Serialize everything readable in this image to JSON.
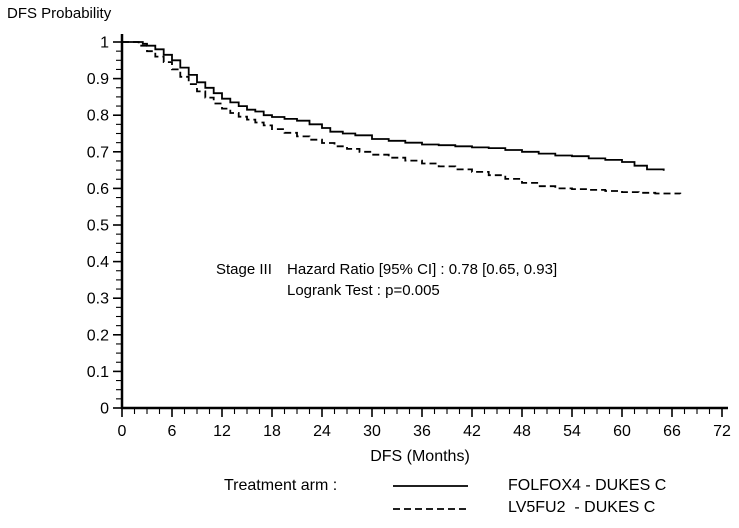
{
  "figure": {
    "ylabel_title": "DFS Probability",
    "xlabel": "DFS (Months)",
    "annotation": {
      "stage": "Stage III",
      "hazard_ratio": "Hazard Ratio [95% CI] : 0.78 [0.65, 0.93]",
      "logrank": "Logrank Test : p=0.005"
    },
    "legend": {
      "title": "Treatment arm :",
      "entries": [
        {
          "label": "FOLFOX4 - DUKES C",
          "style": "solid"
        },
        {
          "label": "LV5FU2  - DUKES C",
          "style": "dashed"
        }
      ]
    }
  },
  "chart_data": {
    "type": "line",
    "subtype": "kaplan-meier-step",
    "title": "",
    "xlabel": "DFS (Months)",
    "ylabel": "DFS Probability",
    "xlim": [
      0,
      72
    ],
    "ylim": [
      0,
      1
    ],
    "xticks_major": [
      0,
      6,
      12,
      18,
      24,
      30,
      36,
      42,
      48,
      54,
      60,
      66,
      72
    ],
    "yticks_major": [
      0,
      0.1,
      0.2,
      0.3,
      0.4,
      0.5,
      0.6,
      0.7,
      0.8,
      0.9,
      1
    ],
    "xtick_minor_step": 1.5,
    "xtick_major_step": 6,
    "ytick_minor_step": 0.025,
    "ytick_major_step": 0.1,
    "grid": false,
    "legend_position": "bottom",
    "line_color": "#000000",
    "annotations": [
      "Stage III",
      "Hazard Ratio [95% CI] : 0.78 [0.65, 0.93]",
      "Logrank Test : p=0.005"
    ],
    "series": [
      {
        "name": "FOLFOX4 - DUKES C",
        "line": "solid",
        "color": "#000000",
        "x": [
          0,
          2.5,
          3,
          4,
          5,
          6,
          7,
          8,
          9,
          10,
          11,
          12,
          13,
          14,
          15,
          16,
          17,
          18,
          19.5,
          21,
          22.5,
          24,
          25,
          26.5,
          28,
          30,
          32,
          34,
          36,
          38,
          40,
          42,
          44,
          46,
          48,
          50,
          52,
          54,
          56,
          58,
          60,
          61.5,
          63,
          65
        ],
        "y": [
          1.0,
          0.995,
          0.99,
          0.98,
          0.965,
          0.95,
          0.93,
          0.91,
          0.89,
          0.875,
          0.86,
          0.845,
          0.835,
          0.825,
          0.815,
          0.81,
          0.8,
          0.795,
          0.79,
          0.785,
          0.775,
          0.765,
          0.755,
          0.75,
          0.745,
          0.735,
          0.73,
          0.725,
          0.72,
          0.718,
          0.715,
          0.712,
          0.71,
          0.705,
          0.7,
          0.695,
          0.69,
          0.688,
          0.682,
          0.678,
          0.672,
          0.662,
          0.652,
          0.648
        ]
      },
      {
        "name": "LV5FU2 - DUKES C",
        "line": "dashed",
        "color": "#000000",
        "x": [
          0,
          2,
          3,
          4,
          5,
          6,
          7,
          8,
          9,
          10,
          11,
          12,
          13,
          14,
          15,
          16,
          17,
          18,
          19.5,
          21,
          22.5,
          24,
          25.5,
          27,
          28.5,
          30,
          32,
          34,
          36,
          38,
          40,
          42,
          44,
          46,
          48,
          50,
          52,
          54,
          56,
          58,
          60,
          62,
          64,
          67
        ],
        "y": [
          1.0,
          0.99,
          0.975,
          0.96,
          0.945,
          0.925,
          0.905,
          0.885,
          0.865,
          0.848,
          0.832,
          0.818,
          0.806,
          0.796,
          0.788,
          0.78,
          0.772,
          0.762,
          0.752,
          0.742,
          0.733,
          0.724,
          0.715,
          0.708,
          0.7,
          0.692,
          0.684,
          0.676,
          0.668,
          0.66,
          0.652,
          0.645,
          0.636,
          0.626,
          0.615,
          0.606,
          0.6,
          0.598,
          0.596,
          0.593,
          0.59,
          0.588,
          0.586,
          0.585
        ]
      }
    ]
  }
}
